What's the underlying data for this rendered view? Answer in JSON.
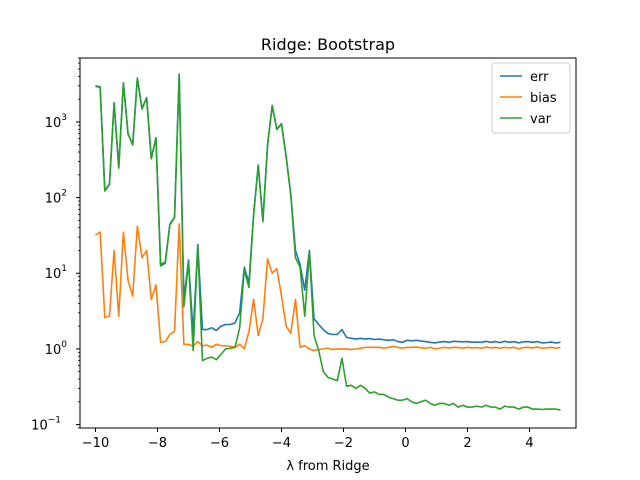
{
  "chart_data": {
    "type": "line",
    "title": "Ridge: Bootstrap",
    "xlabel": "λ from Ridge",
    "ylabel": "",
    "yscale": "log",
    "xlim": [
      -10.5,
      5.5
    ],
    "ylim": [
      0.09,
      7000
    ],
    "xticks": [
      -10,
      -8,
      -6,
      -4,
      -2,
      0,
      2,
      4
    ],
    "xtick_labels": [
      "−10",
      "−8",
      "−6",
      "−4",
      "−2",
      "0",
      "2",
      "4"
    ],
    "yticks": [
      0.1,
      1,
      10,
      100,
      1000
    ],
    "ytick_labels": [
      "10",
      "10",
      "10",
      "10",
      "10"
    ],
    "ytick_exponents": [
      "−1",
      "0",
      "1",
      "2",
      "3"
    ],
    "grid": false,
    "legend_position": "top-right",
    "series": [
      {
        "name": "err",
        "color": "#1f77b4",
        "x": [
          -10.0,
          -9.85,
          -9.7,
          -9.55,
          -9.4,
          -9.25,
          -9.1,
          -8.95,
          -8.8,
          -8.65,
          -8.5,
          -8.35,
          -8.2,
          -8.05,
          -7.9,
          -7.75,
          -7.6,
          -7.45,
          -7.3,
          -7.15,
          -7.0,
          -6.85,
          -6.7,
          -6.55,
          -6.4,
          -6.25,
          -6.1,
          -5.95,
          -5.8,
          -5.65,
          -5.5,
          -5.35,
          -5.2,
          -5.05,
          -4.9,
          -4.75,
          -4.6,
          -4.45,
          -4.3,
          -4.15,
          -4.0,
          -3.85,
          -3.7,
          -3.55,
          -3.4,
          -3.25,
          -3.1,
          -2.95,
          -2.8,
          -2.65,
          -2.5,
          -2.35,
          -2.2,
          -2.05,
          -1.9,
          -1.75,
          -1.6,
          -1.45,
          -1.3,
          -1.15,
          -1.0,
          -0.85,
          -0.7,
          -0.55,
          -0.4,
          -0.25,
          -0.1,
          0.05,
          0.2,
          0.35,
          0.5,
          0.65,
          0.8,
          0.95,
          1.1,
          1.25,
          1.4,
          1.55,
          1.7,
          1.85,
          2.0,
          2.15,
          2.3,
          2.45,
          2.6,
          2.75,
          2.9,
          3.05,
          3.2,
          3.35,
          3.5,
          3.65,
          3.8,
          3.95,
          4.1,
          4.25,
          4.4,
          4.55,
          4.7,
          4.85,
          5.0
        ],
        "values": [
          3000,
          2900,
          125,
          150,
          1800,
          250,
          3300,
          700,
          500,
          3800,
          1500,
          2100,
          330,
          620,
          13,
          14,
          45,
          55,
          4300,
          4.5,
          15,
          1.6,
          24,
          1.8,
          1.8,
          1.9,
          1.75,
          2.0,
          2.1,
          2.1,
          2.2,
          3.0,
          12,
          7.5,
          60,
          270,
          50,
          500,
          1650,
          800,
          950,
          350,
          110,
          20,
          13,
          6,
          20,
          2.5,
          2.1,
          1.8,
          1.6,
          1.55,
          1.55,
          1.8,
          1.42,
          1.38,
          1.35,
          1.38,
          1.35,
          1.37,
          1.33,
          1.35,
          1.32,
          1.3,
          1.32,
          1.25,
          1.22,
          1.3,
          1.28,
          1.3,
          1.27,
          1.25,
          1.22,
          1.2,
          1.23,
          1.25,
          1.22,
          1.26,
          1.25,
          1.24,
          1.25,
          1.22,
          1.23,
          1.22,
          1.26,
          1.22,
          1.25,
          1.21,
          1.26,
          1.22,
          1.25,
          1.2,
          1.24,
          1.25,
          1.22,
          1.25,
          1.2,
          1.21,
          1.23,
          1.2,
          1.22
        ]
      },
      {
        "name": "bias",
        "color": "#ff7f0e",
        "x": [
          -10.0,
          -9.85,
          -9.7,
          -9.55,
          -9.4,
          -9.25,
          -9.1,
          -8.95,
          -8.8,
          -8.65,
          -8.5,
          -8.35,
          -8.2,
          -8.05,
          -7.9,
          -7.75,
          -7.6,
          -7.45,
          -7.3,
          -7.15,
          -7.0,
          -6.85,
          -6.7,
          -6.55,
          -6.4,
          -6.25,
          -6.1,
          -5.95,
          -5.8,
          -5.65,
          -5.5,
          -5.35,
          -5.2,
          -5.05,
          -4.9,
          -4.75,
          -4.6,
          -4.45,
          -4.3,
          -4.15,
          -4.0,
          -3.85,
          -3.7,
          -3.55,
          -3.4,
          -3.25,
          -3.1,
          -2.95,
          -2.8,
          -2.65,
          -2.5,
          -2.35,
          -2.2,
          -2.05,
          -1.9,
          -1.75,
          -1.6,
          -1.45,
          -1.3,
          -1.15,
          -1.0,
          -0.85,
          -0.7,
          -0.55,
          -0.4,
          -0.25,
          -0.1,
          0.05,
          0.2,
          0.35,
          0.5,
          0.65,
          0.8,
          0.95,
          1.1,
          1.25,
          1.4,
          1.55,
          1.7,
          1.85,
          2.0,
          2.15,
          2.3,
          2.45,
          2.6,
          2.75,
          2.9,
          3.05,
          3.2,
          3.35,
          3.5,
          3.65,
          3.8,
          3.95,
          4.1,
          4.25,
          4.4,
          4.55,
          4.7,
          4.85,
          5.0
        ],
        "values": [
          32,
          35,
          2.6,
          2.7,
          20,
          2.7,
          35,
          8.0,
          5.0,
          42,
          16,
          20,
          4.5,
          7.0,
          1.22,
          1.25,
          1.55,
          1.7,
          45,
          1.15,
          1.15,
          1.08,
          1.25,
          1.1,
          1.12,
          1.05,
          1.15,
          1.1,
          1.1,
          1.08,
          1.05,
          1.15,
          1.0,
          1.7,
          4.5,
          1.5,
          2.5,
          15.5,
          10,
          11.5,
          5.0,
          2.0,
          1.6,
          4.5,
          1.05,
          1.1,
          1.0,
          0.95,
          0.98,
          1.0,
          1.02,
          0.98,
          1.0,
          1.0,
          1.0,
          0.98,
          1.0,
          1.02,
          1.05,
          1.05,
          1.05,
          1.05,
          1.02,
          1.05,
          1.08,
          1.05,
          1.02,
          1.05,
          1.05,
          1.06,
          1.03,
          1.02,
          1.05,
          1.0,
          1.02,
          1.05,
          1.03,
          1.05,
          1.04,
          1.02,
          1.05,
          1.03,
          1.04,
          1.02,
          1.06,
          1.03,
          1.05,
          1.02,
          1.05,
          1.03,
          1.05,
          1.0,
          1.04,
          1.05,
          1.03,
          1.06,
          1.02,
          1.03,
          1.05,
          1.02,
          1.05
        ]
      },
      {
        "name": "var",
        "color": "#2ca02c",
        "x": [
          -10.0,
          -9.85,
          -9.7,
          -9.55,
          -9.4,
          -9.25,
          -9.1,
          -8.95,
          -8.8,
          -8.65,
          -8.5,
          -8.35,
          -8.2,
          -8.05,
          -7.9,
          -7.75,
          -7.6,
          -7.45,
          -7.3,
          -7.15,
          -7.0,
          -6.85,
          -6.7,
          -6.55,
          -6.4,
          -6.25,
          -6.1,
          -5.95,
          -5.8,
          -5.65,
          -5.5,
          -5.35,
          -5.2,
          -5.05,
          -4.9,
          -4.75,
          -4.6,
          -4.45,
          -4.3,
          -4.15,
          -4.0,
          -3.85,
          -3.7,
          -3.55,
          -3.4,
          -3.25,
          -3.1,
          -2.95,
          -2.8,
          -2.65,
          -2.5,
          -2.35,
          -2.2,
          -2.05,
          -1.9,
          -1.75,
          -1.6,
          -1.45,
          -1.3,
          -1.15,
          -1.0,
          -0.85,
          -0.7,
          -0.55,
          -0.4,
          -0.25,
          -0.1,
          0.05,
          0.2,
          0.35,
          0.5,
          0.65,
          0.8,
          0.95,
          1.1,
          1.25,
          1.4,
          1.55,
          1.7,
          1.85,
          2.0,
          2.15,
          2.3,
          2.45,
          2.6,
          2.75,
          2.9,
          3.05,
          3.2,
          3.35,
          3.5,
          3.65,
          3.8,
          3.95,
          4.1,
          4.25,
          4.4,
          4.55,
          4.7,
          4.85,
          5.0
        ],
        "values": [
          2950,
          2850,
          122,
          148,
          1750,
          245,
          3250,
          690,
          495,
          3750,
          1480,
          2080,
          325,
          610,
          12.5,
          13.5,
          44,
          54,
          4250,
          3.6,
          14,
          0.95,
          23,
          0.7,
          0.75,
          0.78,
          0.72,
          0.85,
          1.0,
          1.02,
          1.05,
          1.9,
          11,
          6.5,
          58,
          265,
          48,
          490,
          1640,
          790,
          940,
          345,
          108,
          16,
          12,
          2.7,
          19,
          1.5,
          0.95,
          0.5,
          0.42,
          0.4,
          0.38,
          0.75,
          0.32,
          0.33,
          0.3,
          0.33,
          0.3,
          0.26,
          0.27,
          0.25,
          0.25,
          0.23,
          0.22,
          0.21,
          0.21,
          0.22,
          0.2,
          0.19,
          0.2,
          0.21,
          0.19,
          0.18,
          0.19,
          0.19,
          0.18,
          0.19,
          0.17,
          0.18,
          0.17,
          0.17,
          0.175,
          0.17,
          0.18,
          0.17,
          0.17,
          0.16,
          0.175,
          0.17,
          0.17,
          0.16,
          0.17,
          0.17,
          0.16,
          0.16,
          0.158,
          0.16,
          0.16,
          0.16,
          0.155
        ]
      }
    ]
  }
}
